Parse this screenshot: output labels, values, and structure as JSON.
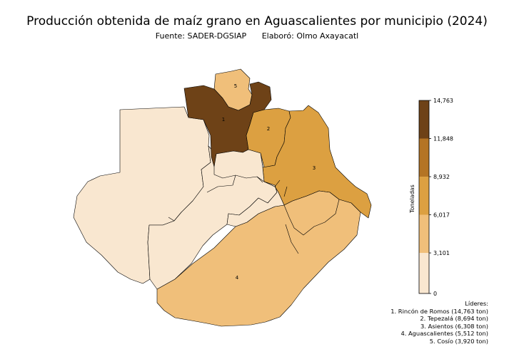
{
  "title": "Producción obtenida de maíz grano en Aguascalientes por municipio (2024)",
  "subtitle": {
    "source": "Fuente: SADER-DGSIAP",
    "author": "Elaboró: Olmo Axayacatl"
  },
  "map": {
    "region": "Aguascalientes",
    "municipality_labels": [
      "1",
      "2",
      "3",
      "4",
      "5"
    ],
    "colors": {
      "class_1": "#f9e7d0",
      "class_2": "#f0bf7a",
      "class_3": "#dca041",
      "class_4": "#b47424",
      "class_5": "#6e4217",
      "border": "#000000"
    }
  },
  "colorbar": {
    "label": "Toneladas",
    "ticks": [
      "14,763",
      "11,848",
      "8,932",
      "6,017",
      "3,101",
      "0"
    ],
    "tick_values": [
      14763,
      11848,
      8932,
      6017,
      3101,
      0
    ]
  },
  "leaders": {
    "heading": "Líderes:",
    "items": [
      "1. Rincón de Romos (14,763 ton)",
      "2. Tepezalá (8,694 ton)",
      "3. Asientos (6,308 ton)",
      "4. Aguascalientes (5,512 ton)",
      "5. Cosío (3,920 ton)"
    ]
  },
  "chart_data": {
    "type": "choropleth",
    "title": "Producción obtenida de maíz grano en Aguascalientes por municipio (2024)",
    "unit": "Toneladas",
    "scale_min": 0,
    "scale_max": 14763,
    "class_breaks": [
      0,
      3101,
      6017,
      8932,
      11848,
      14763
    ],
    "values": [
      {
        "rank": "1",
        "municipality": "Rincón de Romos",
        "value": 14763
      },
      {
        "rank": "2",
        "municipality": "Tepezalá",
        "value": 8694
      },
      {
        "rank": "3",
        "municipality": "Asientos",
        "value": 6308
      },
      {
        "rank": "4",
        "municipality": "Aguascalientes",
        "value": 5512
      },
      {
        "rank": "5",
        "municipality": "Cosío",
        "value": 3920
      }
    ]
  }
}
